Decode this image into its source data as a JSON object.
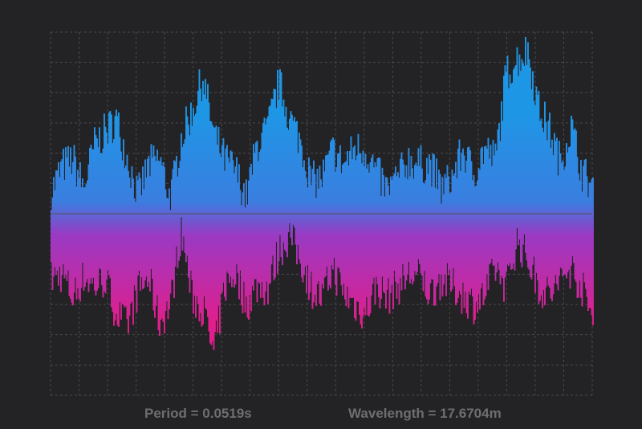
{
  "readouts": {
    "period": "Period = 0.0519s",
    "wavelength": "Wavelength = 17.6704m"
  },
  "colors": {
    "background": "#232325",
    "grid": "#4a4a4e",
    "center_line": "#5a5a8a",
    "wave_top": "#1e96e6",
    "wave_bottom": "#e01e8c",
    "text": "#6e6e72"
  },
  "chart_data": {
    "type": "area",
    "title": "",
    "xlabel": "",
    "ylabel": "",
    "grid": true,
    "xlim": [
      0,
      100
    ],
    "ylim": [
      -1,
      1
    ],
    "series": [
      {
        "x": [
          0,
          2,
          4,
          6,
          8,
          10,
          12,
          14,
          16,
          18,
          20,
          22,
          24,
          26,
          28,
          30,
          32,
          34,
          36,
          38,
          40,
          42,
          44,
          46,
          48,
          50,
          52,
          54,
          56,
          58,
          60,
          62,
          64,
          66,
          68,
          70,
          72,
          74,
          76,
          78,
          80,
          82,
          84,
          86,
          88,
          90,
          92,
          94,
          96,
          98,
          100
        ],
        "upper": [
          0.12,
          0.26,
          0.3,
          0.14,
          0.38,
          0.45,
          0.52,
          0.31,
          0.1,
          0.27,
          0.3,
          0.08,
          0.42,
          0.56,
          0.75,
          0.44,
          0.3,
          0.24,
          0.09,
          0.38,
          0.47,
          0.72,
          0.53,
          0.4,
          0.18,
          0.2,
          0.35,
          0.27,
          0.36,
          0.35,
          0.23,
          0.13,
          0.2,
          0.3,
          0.27,
          0.27,
          0.14,
          0.2,
          0.35,
          0.22,
          0.36,
          0.3,
          0.77,
          0.85,
          0.9,
          0.58,
          0.46,
          0.28,
          0.48,
          0.23,
          0.15
        ],
        "lower": [
          -0.36,
          -0.33,
          -0.46,
          -0.35,
          -0.4,
          -0.36,
          -0.55,
          -0.62,
          -0.42,
          -0.36,
          -0.6,
          -0.5,
          -0.08,
          -0.46,
          -0.52,
          -0.78,
          -0.4,
          -0.33,
          -0.5,
          -0.4,
          -0.41,
          -0.21,
          -0.12,
          -0.25,
          -0.41,
          -0.47,
          -0.3,
          -0.44,
          -0.5,
          -0.55,
          -0.4,
          -0.46,
          -0.4,
          -0.34,
          -0.35,
          -0.44,
          -0.36,
          -0.4,
          -0.45,
          -0.5,
          -0.45,
          -0.3,
          -0.4,
          -0.15,
          -0.25,
          -0.4,
          -0.45,
          -0.37,
          -0.3,
          -0.41,
          -0.58
        ]
      }
    ]
  }
}
